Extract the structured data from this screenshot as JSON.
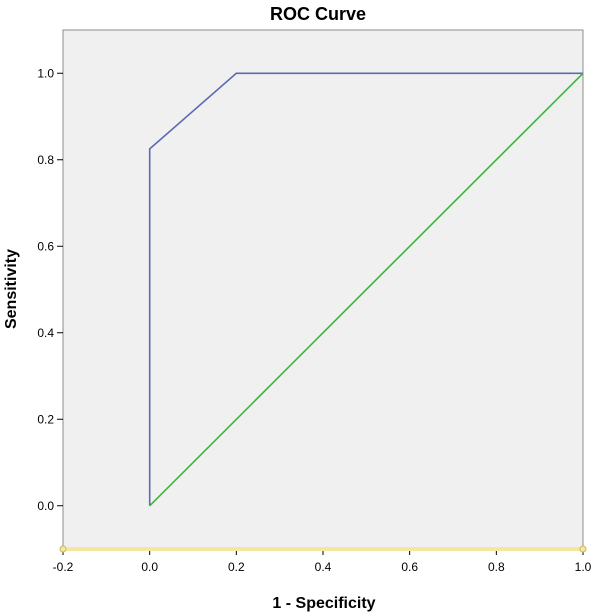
{
  "chart_data": {
    "type": "line",
    "title": "ROC Curve",
    "xlabel": "1 - Specificity",
    "ylabel": "Sensitivity",
    "xlim": [
      -0.2,
      1.0
    ],
    "ylim": [
      -0.1,
      1.1
    ],
    "xticks": [
      -0.2,
      0.0,
      0.2,
      0.4,
      0.6,
      0.8,
      1.0
    ],
    "yticks": [
      0.0,
      0.2,
      0.4,
      0.6,
      0.8,
      1.0
    ],
    "xtick_labels": [
      "-0.2",
      "0.0",
      "0.2",
      "0.4",
      "0.6",
      "0.8",
      "1.0"
    ],
    "ytick_labels": [
      "0.0",
      "0.2",
      "0.4",
      "0.6",
      "0.8",
      "1.0"
    ],
    "grid": false,
    "background_color": "#f0f0f0",
    "series": [
      {
        "color": "#5b6ab4",
        "x": [
          0.0,
          0.0,
          0.2,
          1.0
        ],
        "y": [
          0.0,
          0.825,
          1.0,
          1.0
        ]
      },
      {
        "color": "#3cb43c",
        "x": [
          0.0,
          1.0
        ],
        "y": [
          0.0,
          1.0
        ]
      }
    ],
    "baseline": {
      "color": "#f5e6a0",
      "y": -0.1
    }
  }
}
